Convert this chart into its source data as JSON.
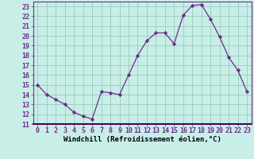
{
  "x": [
    0,
    1,
    2,
    3,
    4,
    5,
    6,
    7,
    8,
    9,
    10,
    11,
    12,
    13,
    14,
    15,
    16,
    17,
    18,
    19,
    20,
    21,
    22,
    23
  ],
  "y": [
    15.0,
    14.0,
    13.5,
    13.0,
    12.2,
    11.8,
    11.5,
    14.3,
    14.2,
    14.0,
    16.0,
    18.0,
    19.5,
    20.3,
    20.3,
    19.2,
    22.1,
    23.1,
    23.2,
    21.7,
    19.9,
    17.8,
    16.5,
    14.3
  ],
  "line_color": "#6B2D8B",
  "marker_color": "#6B2D8B",
  "bg_color": "#C8EEE8",
  "grid_color": "#99CCBB",
  "xlabel": "Windchill (Refroidissement éolien,°C)",
  "xlim": [
    -0.5,
    23.5
  ],
  "ylim": [
    11,
    23.5
  ],
  "xticks": [
    0,
    1,
    2,
    3,
    4,
    5,
    6,
    7,
    8,
    9,
    10,
    11,
    12,
    13,
    14,
    15,
    16,
    17,
    18,
    19,
    20,
    21,
    22,
    23
  ],
  "yticks": [
    11,
    12,
    13,
    14,
    15,
    16,
    17,
    18,
    19,
    20,
    21,
    22,
    23
  ],
  "label_fontsize": 6.5,
  "tick_fontsize": 6.0
}
